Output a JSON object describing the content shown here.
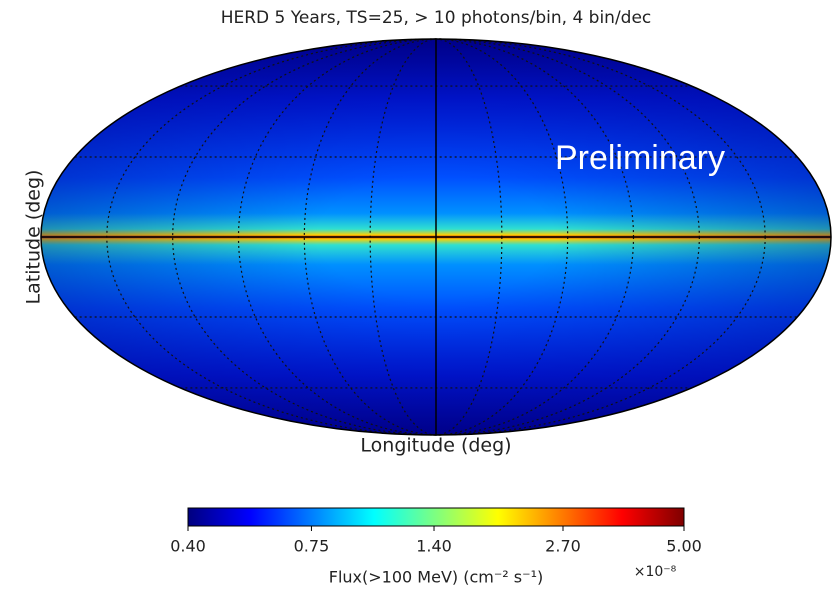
{
  "chart_data": {
    "type": "skymap",
    "title": "HERD 5 Years, TS=25, > 10 photons/bin, 4 bin/dec",
    "annotation": "Preliminary",
    "ylabel": "Latitude (deg)",
    "xlabel": "Longitude (deg)",
    "projection": "mollweide",
    "grid": true,
    "colormap": "jet",
    "colorbar": {
      "log": true,
      "lim": [
        0.4,
        5.0
      ],
      "ticks": [
        {
          "value": 0.4,
          "label": "0.40"
        },
        {
          "value": 0.75,
          "label": "0.75"
        },
        {
          "value": 1.4,
          "label": "1.40"
        },
        {
          "value": 2.7,
          "label": "2.70"
        },
        {
          "value": 5.0,
          "label": "5.00"
        }
      ],
      "label": "Flux(>100 MeV) (cm⁻² s⁻¹)",
      "offset_label": "×10⁻⁸"
    }
  }
}
